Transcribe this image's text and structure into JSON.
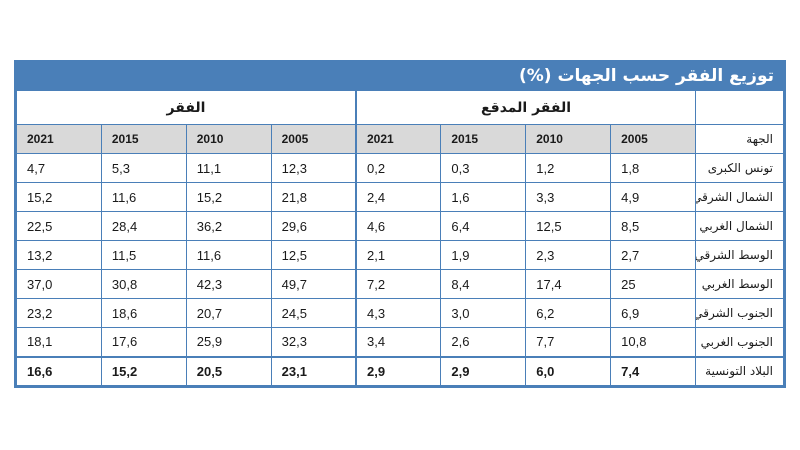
{
  "title": "توزيع الفقر حسب الجهات (%)",
  "groups": {
    "extreme": "الفقر المدقع",
    "poverty": "الفقر"
  },
  "region_header": "الجهة",
  "years": [
    "2005",
    "2010",
    "2015",
    "2021"
  ],
  "colors": {
    "accent": "#4a7fb8",
    "header_fill": "#d9d9d9"
  },
  "rows": [
    {
      "region": "تونس الكبرى",
      "extreme": [
        "1,8",
        "1,2",
        "0,3",
        "0,2"
      ],
      "poverty": [
        "12,3",
        "11,1",
        "5,3",
        "4,7"
      ]
    },
    {
      "region": "الشمال الشرقي",
      "extreme": [
        "4,9",
        "3,3",
        "1,6",
        "2,4"
      ],
      "poverty": [
        "21,8",
        "15,2",
        "11,6",
        "15,2"
      ]
    },
    {
      "region": "الشمال الغربي",
      "extreme": [
        "8,5",
        "12,5",
        "6,4",
        "4,6"
      ],
      "poverty": [
        "29,6",
        "36,2",
        "28,4",
        "22,5"
      ]
    },
    {
      "region": "الوسط الشرقي",
      "extreme": [
        "2,7",
        "2,3",
        "1,9",
        "2,1"
      ],
      "poverty": [
        "12,5",
        "11,6",
        "11,5",
        "13,2"
      ]
    },
    {
      "region": "الوسط الغربي",
      "extreme": [
        "25",
        "17,4",
        "8,4",
        "7,2"
      ],
      "poverty": [
        "49,7",
        "42,3",
        "30,8",
        "37,0"
      ]
    },
    {
      "region": "الجنوب الشرقي",
      "extreme": [
        "6,9",
        "6,2",
        "3,0",
        "4,3"
      ],
      "poverty": [
        "24,5",
        "20,7",
        "18,6",
        "23,2"
      ]
    },
    {
      "region": "الجنوب الغربي",
      "extreme": [
        "10,8",
        "7,7",
        "2,6",
        "3,4"
      ],
      "poverty": [
        "32,3",
        "25,9",
        "17,6",
        "18,1"
      ]
    }
  ],
  "total": {
    "region": "البلاد التونسية",
    "extreme": [
      "7,4",
      "6,0",
      "2,9",
      "2,9"
    ],
    "poverty": [
      "23,1",
      "20,5",
      "15,2",
      "16,6"
    ]
  }
}
